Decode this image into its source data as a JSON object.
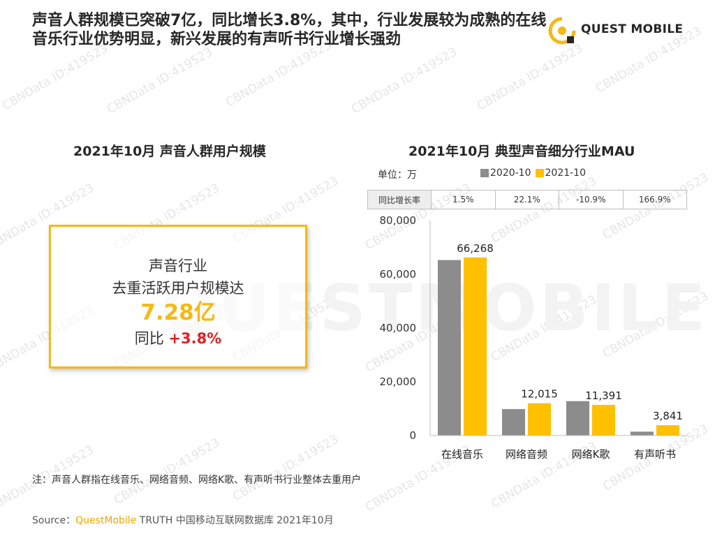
{
  "headline": "声音人群规模已突破7亿，同比增长3.8%，其中，行业发展较为成熟的在线音乐行业优势明显，新兴发展的有声听书行业增长强劲",
  "logo": {
    "text": "QUEST MOBILE",
    "icon": "questmobile-logo-icon"
  },
  "watermark": {
    "text": "CBNData ID:419523",
    "big_text": "QUESTMOBILE"
  },
  "left": {
    "title": "2021年10月 声音人群用户规模",
    "kpi": {
      "line1": "声音行业",
      "line2": "去重活跃用户规模达",
      "value": "7.28亿",
      "yoy_label": "同比",
      "yoy_value": "+3.8%"
    }
  },
  "right": {
    "title": "2021年10月  典型声音细分行业MAU",
    "unit": "单位：万",
    "growth_header": "同比增长率",
    "growth": [
      "1.5%",
      "22.1%",
      "-10.9%",
      "166.9%"
    ]
  },
  "colors": {
    "accent": "#f5b914",
    "gray_bar": "#8c8c8c",
    "yellow_bar": "#ffc000",
    "red": "#e02020"
  },
  "chart_data": {
    "type": "bar",
    "title": "2021年10月  典型声音细分行业MAU",
    "ylabel": "单位：万",
    "categories": [
      "在线音乐",
      "网络音频",
      "网络K歌",
      "有声听书"
    ],
    "series": [
      {
        "name": "2020-10",
        "values": [
          65300,
          9840,
          12790,
          1440
        ],
        "color": "#8c8c8c"
      },
      {
        "name": "2021-10",
        "values": [
          66268,
          12015,
          11391,
          3841
        ],
        "color": "#ffc000"
      }
    ],
    "data_labels": [
      "66,268",
      "12,015",
      "11,391",
      "3,841"
    ],
    "ylim": [
      0,
      80000
    ],
    "yticks": [
      0,
      20000,
      40000,
      60000,
      80000
    ],
    "ytick_labels": [
      "0",
      "20,000",
      "40,000",
      "60,000",
      "80,000"
    ],
    "legend": "top",
    "grid": false
  },
  "note": "注：声音人群指在线音乐、网络音频、网络K歌、有声听书行业整体去重用户",
  "source": {
    "prefix": "Source：",
    "brand": "QuestMobile",
    "rest": " TRUTH 中国移动互联网数据库 2021年10月"
  }
}
